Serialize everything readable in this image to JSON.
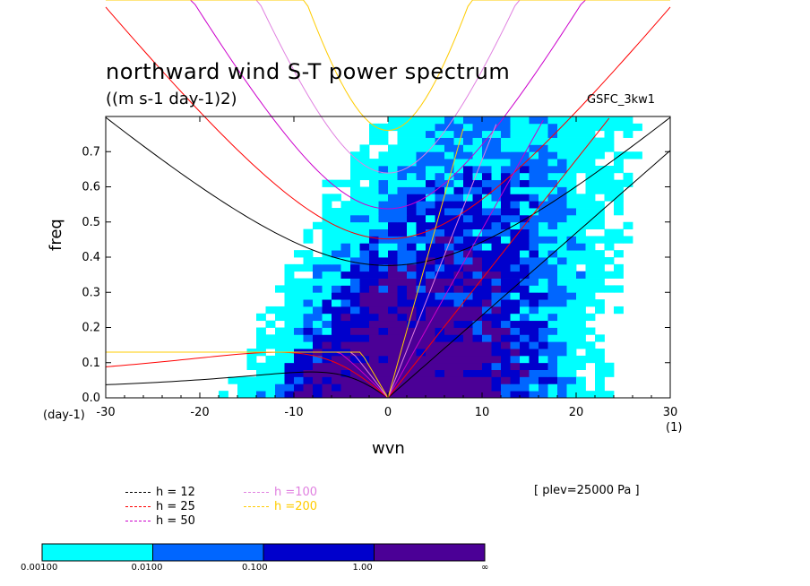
{
  "figure": {
    "title": "northward wind S-T power spectrum",
    "units": "((m s-1 day-1)2)",
    "tag": "GSFC_3kw1",
    "level": "[ plev=25000 Pa ]",
    "y_unit_note": "(day-1)",
    "x_unit_note": "(1)"
  },
  "chart_data": {
    "type": "heatmap",
    "xlabel": "wvn",
    "ylabel": "freq",
    "xlim": [
      -30,
      30
    ],
    "ylim": [
      0.0,
      0.8
    ],
    "xticks": [
      "-30",
      "-20",
      "-10",
      "0",
      "10",
      "20",
      "30"
    ],
    "yticks": [
      "0.0",
      "0.1",
      "0.2",
      "0.3",
      "0.4",
      "0.5",
      "0.6",
      "0.7"
    ],
    "contour_levels": [
      {
        "label": "0.00100",
        "color": "#00ffff"
      },
      {
        "label": "0.0100",
        "color": "#0066ff"
      },
      {
        "label": "0.100",
        "color": "#0000cc"
      },
      {
        "label": "1.00",
        "color": "#4b0096"
      }
    ],
    "colorbar_end_label": "∞",
    "dispersion_curves": [
      {
        "label": "h = 12",
        "color": "#000000"
      },
      {
        "label": "h = 25",
        "color": "#ff0000"
      },
      {
        "label": "h = 50",
        "color": "#cc00cc"
      },
      {
        "label": "h =100",
        "color": "#e080e0"
      },
      {
        "label": "h =200",
        "color": "#ffcc00"
      }
    ]
  }
}
